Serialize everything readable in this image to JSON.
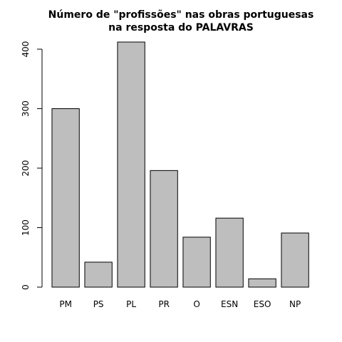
{
  "chart_data": {
    "type": "bar",
    "title": [
      "Número de \"profissões\" nas obras portuguesas",
      "na resposta do PALAVRAS"
    ],
    "categories": [
      "PM",
      "PS",
      "PL",
      "PR",
      "O",
      "ESN",
      "ESO",
      "NP"
    ],
    "values": [
      300,
      42,
      412,
      196,
      84,
      116,
      14,
      91
    ],
    "color": "#bebebe",
    "ylim": [
      0,
      412
    ],
    "yticks": [
      0,
      100,
      200,
      300,
      400
    ]
  }
}
